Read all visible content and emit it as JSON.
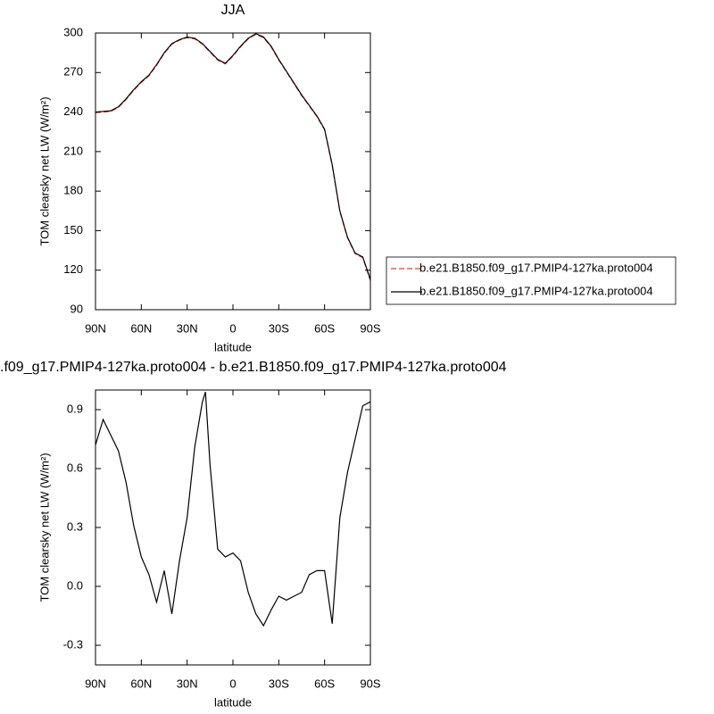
{
  "chart_data": [
    {
      "type": "line",
      "title": "JJA",
      "xlabel": "latitude",
      "ylabel": "TOM clearsky net LW (W/m²)",
      "x": [
        90,
        85,
        80,
        75,
        70,
        65,
        60,
        55,
        50,
        45,
        40,
        35,
        30,
        25,
        20,
        15,
        10,
        5,
        0,
        -5,
        -10,
        -15,
        -20,
        -25,
        -30,
        -35,
        -40,
        -45,
        -50,
        -55,
        -60,
        -65,
        -70,
        -75,
        -80,
        -85,
        -90
      ],
      "series": [
        {
          "name": "b.e21.B1850.f09_g17.PMIP4-127ka.proto004",
          "color": "#e8413c",
          "line_style": "dashed",
          "values": [
            239.5,
            240,
            240.5,
            243.5,
            249.5,
            256.5,
            262.5,
            267.5,
            275.5,
            284.5,
            291.5,
            294.5,
            296.5,
            295.5,
            291.5,
            285.5,
            279.5,
            276.5,
            282.5,
            289.5,
            295.5,
            299,
            296.5,
            289.5,
            279.5,
            270.5,
            261.5,
            252.5,
            244.5,
            236.5,
            226.5,
            199.5,
            164.5,
            144.5,
            132.5,
            129.5,
            112
          ]
        },
        {
          "name": "b.e21.B1850.f09_g17.PMIP4-127ka.proto004",
          "color": "#000000",
          "line_style": "solid",
          "values": [
            240,
            240.5,
            241,
            244,
            250,
            257,
            263,
            268,
            276,
            285,
            292,
            295,
            297,
            296,
            292,
            286,
            280,
            277,
            283,
            290,
            296,
            299.5,
            297,
            290,
            280,
            271,
            262,
            253,
            245,
            237,
            227,
            200,
            165,
            145,
            133,
            130,
            113
          ]
        }
      ],
      "xlim": [
        90,
        -90
      ],
      "xticks": [
        {
          "value": 90,
          "label": "90N"
        },
        {
          "value": 60,
          "label": "60N"
        },
        {
          "value": 30,
          "label": "30N"
        },
        0,
        {
          "value": -30,
          "label": "30S"
        },
        {
          "value": -60,
          "label": "60S"
        },
        {
          "value": -90,
          "label": "90S"
        }
      ],
      "ylim": [
        90,
        300
      ],
      "yticks": [
        90,
        120,
        150,
        180,
        210,
        240,
        270,
        300
      ],
      "legend": "right"
    },
    {
      "type": "line",
      "title": ".f09_g17.PMIP4-127ka.proto004 - b.e21.B1850.f09_g17.PMIP4-127ka.proto004",
      "xlabel": "latitude",
      "ylabel": "TOM clearsky net LW (W/m²)",
      "x": [
        90,
        85,
        80,
        75,
        70,
        65,
        60,
        55,
        50,
        45,
        40,
        35,
        30,
        25,
        20,
        18,
        15,
        10,
        5,
        0,
        -5,
        -10,
        -15,
        -20,
        -25,
        -30,
        -35,
        -40,
        -45,
        -50,
        -55,
        -60,
        -65,
        -70,
        -75,
        -80,
        -85,
        -90
      ],
      "series": [
        {
          "color": "#000000",
          "line_style": "solid",
          "values": [
            0.72,
            0.85,
            0.77,
            0.69,
            0.53,
            0.31,
            0.15,
            0.06,
            -0.08,
            0.08,
            -0.14,
            0.13,
            0.35,
            0.71,
            0.94,
            0.99,
            0.62,
            0.19,
            0.15,
            0.17,
            0.13,
            -0.03,
            -0.14,
            -0.2,
            -0.12,
            -0.05,
            -0.07,
            -0.05,
            -0.03,
            0.06,
            0.08,
            0.08,
            -0.19,
            0.35,
            0.58,
            0.75,
            0.92,
            0.94
          ]
        }
      ],
      "xlim": [
        90,
        -90
      ],
      "xticks": [
        {
          "value": 90,
          "label": "90N"
        },
        {
          "value": 60,
          "label": "60N"
        },
        {
          "value": 30,
          "label": "30N"
        },
        0,
        {
          "value": -30,
          "label": "30S"
        },
        {
          "value": -60,
          "label": "60S"
        },
        {
          "value": -90,
          "label": "90S"
        }
      ],
      "ylim": [
        -0.4,
        1.0
      ],
      "yticks": [
        -0.3,
        {
          "value": 0,
          "label": "0.0"
        },
        0.3,
        0.6,
        0.9
      ]
    }
  ]
}
